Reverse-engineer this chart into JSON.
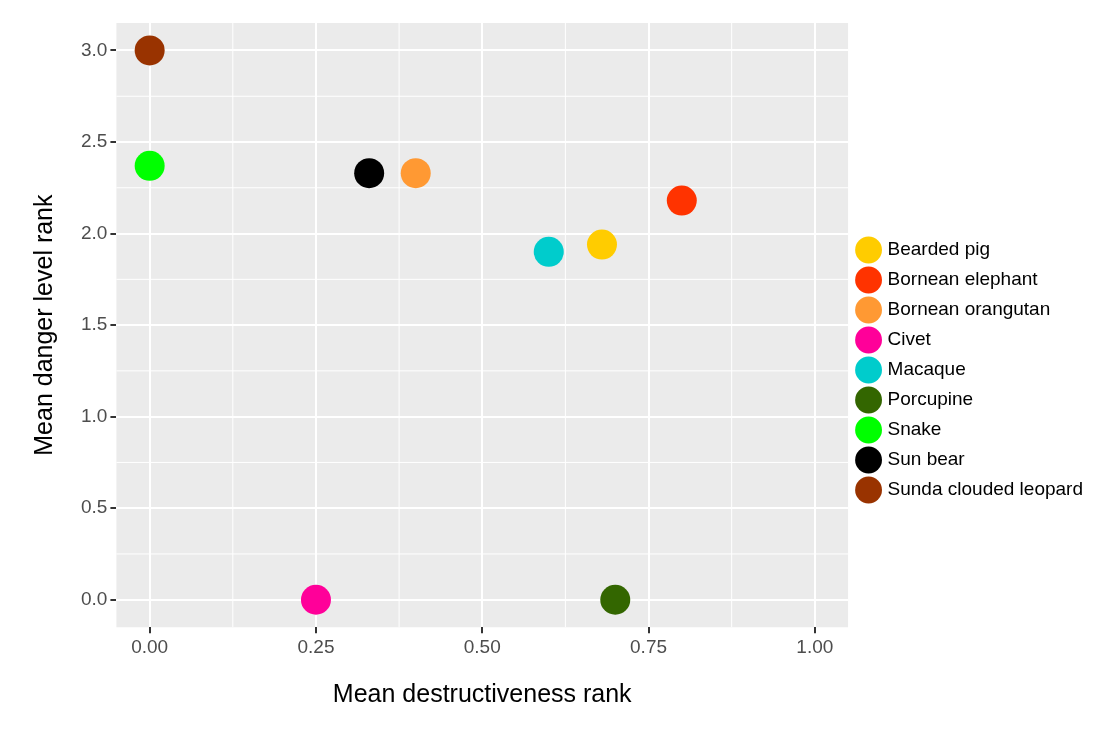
{
  "chart_data": {
    "type": "scatter",
    "xlabel": "Mean destructiveness rank",
    "ylabel": "Mean danger level rank",
    "xlim": [
      -0.05,
      1.05
    ],
    "xticks": [
      {
        "value": 0,
        "label": "0.00"
      },
      {
        "value": 0.25,
        "label": "0.25"
      },
      {
        "value": 0.5,
        "label": "0.50"
      },
      {
        "value": 0.75,
        "label": "0.75"
      },
      {
        "value": 1,
        "label": "1.00"
      }
    ],
    "ylim": [
      -0.15,
      3.15
    ],
    "yticks": [
      {
        "value": 0,
        "label": "0.0"
      },
      {
        "value": 0.5,
        "label": "0.5"
      },
      {
        "value": 1,
        "label": "1.0"
      },
      {
        "value": 1.5,
        "label": "1.5"
      },
      {
        "value": 2,
        "label": "2.0"
      },
      {
        "value": 2.5,
        "label": "2.5"
      },
      {
        "value": 3,
        "label": "3.0"
      }
    ],
    "grid": true,
    "legend": "right",
    "marker": "circle",
    "series": [
      {
        "name": "Bearded pig",
        "color": "#ffcc00",
        "x": [
          0.68
        ],
        "values": [
          1.94
        ]
      },
      {
        "name": "Bornean elephant",
        "color": "#ff3300",
        "x": [
          0.8
        ],
        "values": [
          2.18
        ]
      },
      {
        "name": "Bornean orangutan",
        "color": "#ff9933",
        "x": [
          0.4
        ],
        "values": [
          2.33
        ]
      },
      {
        "name": "Civet",
        "color": "#ff0099",
        "x": [
          0.25
        ],
        "values": [
          0
        ]
      },
      {
        "name": "Macaque",
        "color": "#00cccc",
        "x": [
          0.6
        ],
        "values": [
          1.9
        ]
      },
      {
        "name": "Porcupine",
        "color": "#336600",
        "x": [
          0.7
        ],
        "values": [
          0
        ]
      },
      {
        "name": "Snake",
        "color": "#00ff00",
        "x": [
          0
        ],
        "values": [
          2.37
        ]
      },
      {
        "name": "Sun bear",
        "color": "#000000",
        "x": [
          0.33
        ],
        "values": [
          2.33
        ]
      },
      {
        "name": "Sunda clouded leopard",
        "color": "#993300",
        "x": [
          0
        ],
        "values": [
          3
        ]
      }
    ]
  }
}
